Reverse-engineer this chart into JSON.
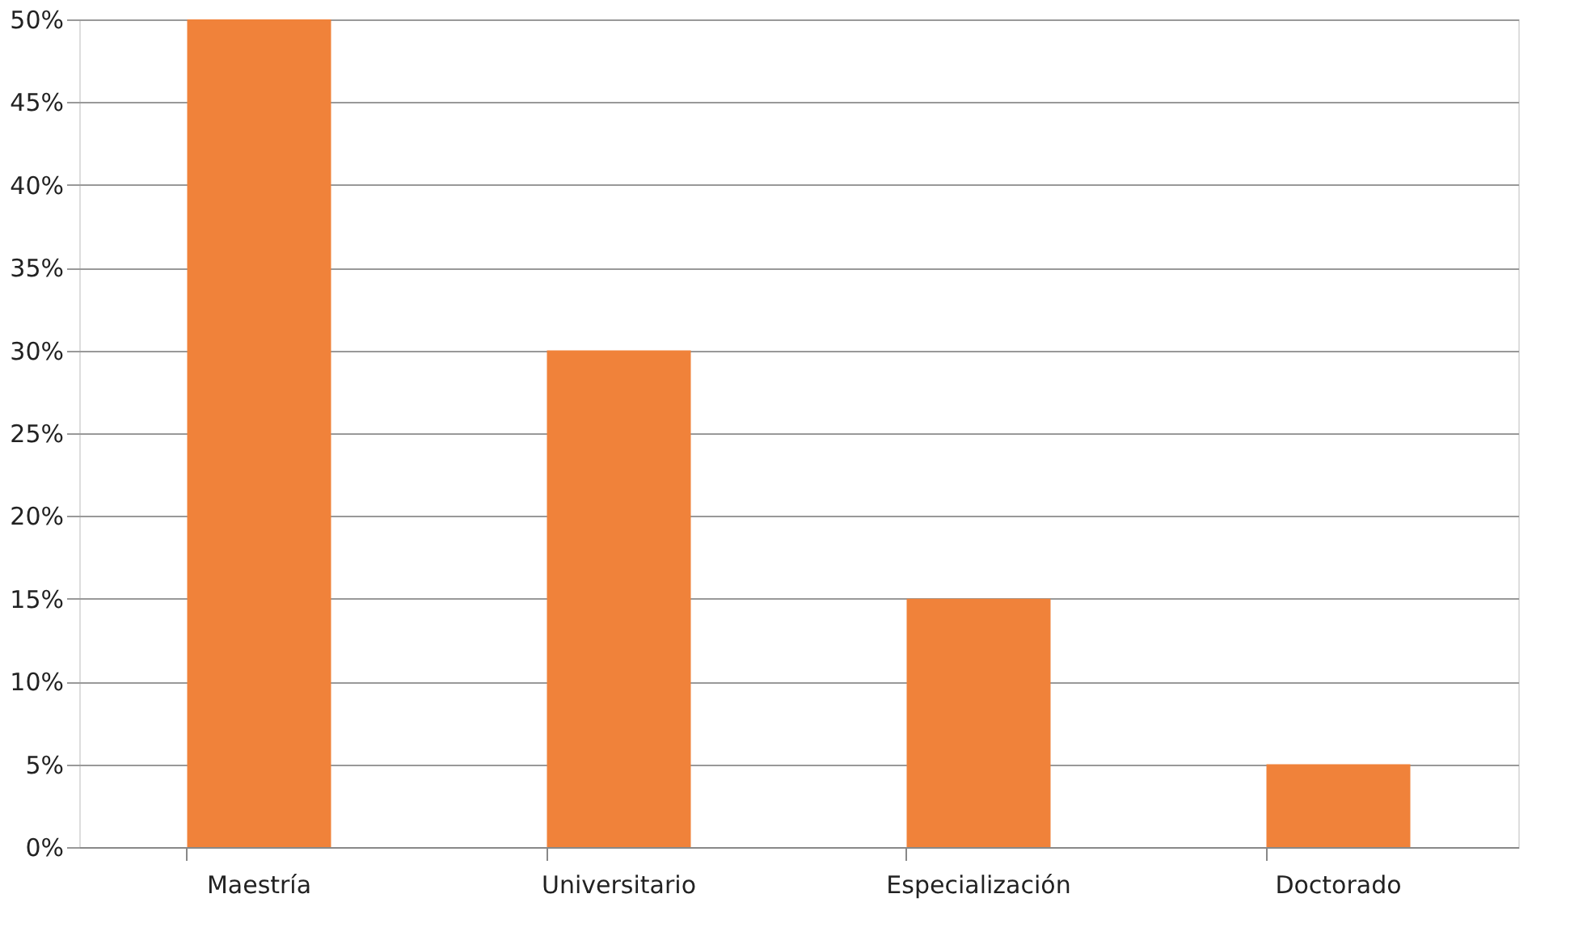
{
  "chart_data": {
    "type": "bar",
    "categories": [
      "Maestría",
      "Universitario",
      "Especialización",
      "Doctorado"
    ],
    "values": [
      50,
      30,
      15,
      5
    ],
    "color": "#f0823a",
    "ylim": [
      0,
      50
    ],
    "yticks": [
      {
        "value": 0,
        "label": "0%"
      },
      {
        "value": 5,
        "label": "5%"
      },
      {
        "value": 10,
        "label": "10%"
      },
      {
        "value": 15,
        "label": "15%"
      },
      {
        "value": 20,
        "label": "20%"
      },
      {
        "value": 25,
        "label": "25%"
      },
      {
        "value": 30,
        "label": "30%"
      },
      {
        "value": 35,
        "label": "35%"
      },
      {
        "value": 40,
        "label": "40%"
      },
      {
        "value": 45,
        "label": "45%"
      },
      {
        "value": 50,
        "label": "50%"
      }
    ],
    "grid": "y"
  }
}
